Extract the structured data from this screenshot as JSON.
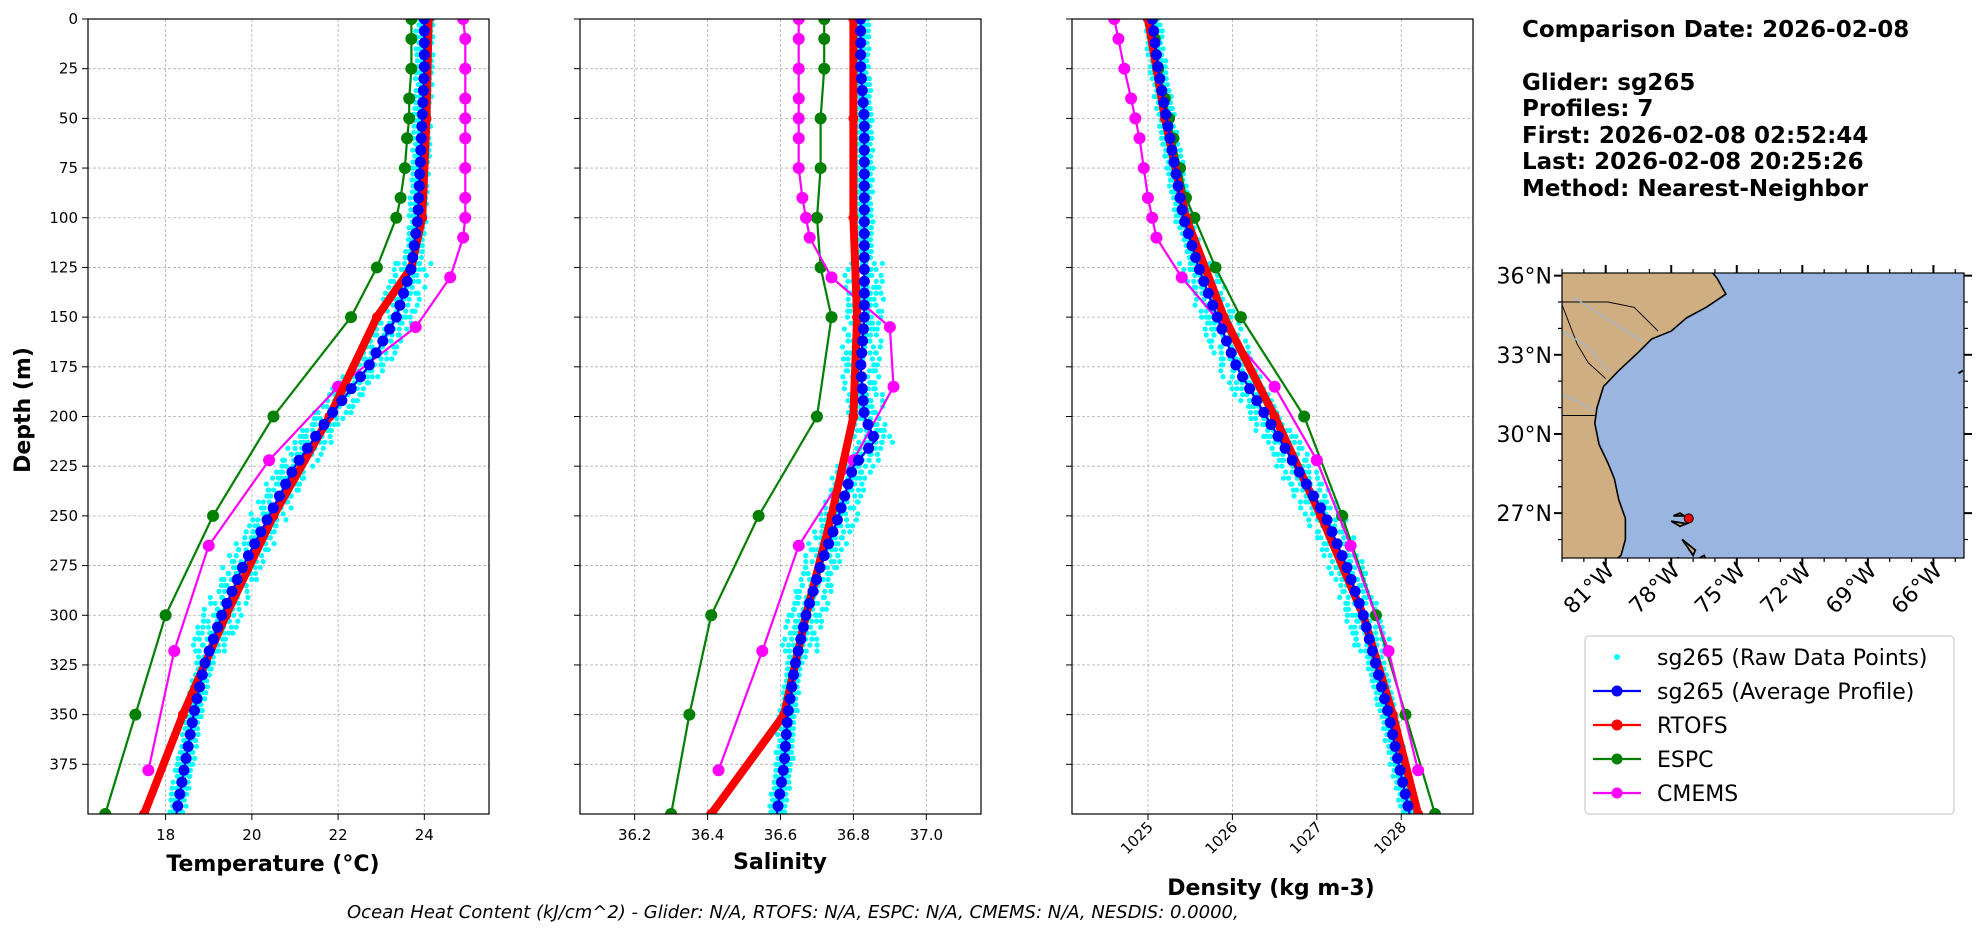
{
  "info": {
    "comparison_date": "Comparison Date: 2026-02-08",
    "lines": [
      "Glider: sg265",
      "Profiles: 7",
      "First: 2026-02-08 02:52:44",
      "Last: 2026-02-08 20:25:26",
      "Method: Nearest-Neighbor"
    ]
  },
  "footer": "Ocean Heat Content (kJ/cm^2) - Glider: N/A,  RTOFS: N/A,  ESPC: N/A,  CMEMS: N/A,  NESDIS: 0.0000,",
  "colors": {
    "raw": "#00ffff",
    "glider": "#0000ff",
    "rtofs": "#ff0000",
    "espc": "#008000",
    "cmems": "#ff00ff",
    "land": "#cfae82",
    "ocean": "#99b5e0",
    "grid": "#b0b0b0"
  },
  "legend": [
    {
      "label": "sg265 (Raw Data Points)",
      "key": "raw"
    },
    {
      "label": "sg265 (Average Profile)",
      "key": "glider"
    },
    {
      "label": "RTOFS",
      "key": "rtofs"
    },
    {
      "label": "ESPC",
      "key": "espc"
    },
    {
      "label": "CMEMS",
      "key": "cmems"
    }
  ],
  "map": {
    "lat_labels": [
      "36°N",
      "33°N",
      "30°N",
      "27°N"
    ],
    "lon_labels": [
      "81°W",
      "78°W",
      "75°W",
      "72°W",
      "69°W",
      "66°W"
    ],
    "lat_range": [
      25.3,
      36.1
    ],
    "lon_range": [
      -83.0,
      -64.6
    ],
    "glider_location": {
      "lat": 26.8,
      "lon": -77.2
    }
  },
  "chart_data": [
    {
      "type": "line",
      "name": "temperature",
      "xlabel": "Temperature (°C)",
      "ylabel": "Depth (m)",
      "xlim": [
        16.2,
        25.5
      ],
      "ylim": [
        0,
        400
      ],
      "y_inverted": true,
      "xticks": [
        18,
        20,
        22,
        24
      ],
      "yticks": [
        0,
        25,
        50,
        75,
        100,
        125,
        150,
        175,
        200,
        225,
        250,
        275,
        300,
        325,
        350,
        375
      ],
      "series": [
        {
          "name": "sg265 (Average Profile)",
          "key": "glider",
          "depth": [
            0,
            25,
            50,
            75,
            100,
            125,
            150,
            175,
            200,
            225,
            250,
            275,
            300,
            325,
            350,
            375,
            400
          ],
          "values": [
            24.0,
            24.0,
            23.95,
            23.9,
            23.85,
            23.7,
            23.35,
            22.7,
            21.8,
            21.0,
            20.4,
            19.8,
            19.3,
            18.9,
            18.65,
            18.45,
            18.25
          ]
        },
        {
          "name": "RTOFS",
          "key": "rtofs",
          "depth": [
            0,
            50,
            100,
            125,
            150,
            200,
            250,
            300,
            350,
            400
          ],
          "values": [
            24.1,
            24.05,
            23.95,
            23.7,
            22.9,
            21.8,
            20.5,
            19.4,
            18.4,
            17.5
          ]
        },
        {
          "name": "ESPC",
          "key": "espc",
          "depth": [
            0,
            10,
            25,
            40,
            50,
            60,
            75,
            90,
            100,
            125,
            150,
            200,
            250,
            300,
            350,
            400
          ],
          "values": [
            23.7,
            23.7,
            23.7,
            23.65,
            23.65,
            23.6,
            23.55,
            23.45,
            23.35,
            22.9,
            22.3,
            20.5,
            19.1,
            18.0,
            17.3,
            16.6
          ]
        },
        {
          "name": "CMEMS",
          "key": "cmems",
          "depth": [
            0,
            10,
            25,
            40,
            50,
            60,
            75,
            90,
            100,
            110,
            130,
            155,
            185,
            222,
            265,
            318,
            378
          ],
          "values": [
            24.9,
            24.95,
            24.95,
            24.95,
            24.95,
            24.95,
            24.95,
            24.95,
            24.95,
            24.9,
            24.6,
            23.8,
            22.0,
            20.4,
            19.0,
            18.2,
            17.6
          ]
        }
      ]
    },
    {
      "type": "line",
      "name": "salinity",
      "xlabel": "Salinity",
      "xlim": [
        36.05,
        37.15
      ],
      "ylim": [
        0,
        400
      ],
      "y_inverted": true,
      "xticks": [
        36.2,
        36.4,
        36.6,
        36.8,
        37.0
      ],
      "series": [
        {
          "name": "sg265 (Average Profile)",
          "key": "glider",
          "depth": [
            0,
            25,
            50,
            75,
            100,
            125,
            150,
            175,
            200,
            212,
            225,
            250,
            275,
            300,
            325,
            350,
            375,
            400
          ],
          "values": [
            36.82,
            36.82,
            36.83,
            36.83,
            36.83,
            36.83,
            36.83,
            36.82,
            36.83,
            36.86,
            36.8,
            36.76,
            36.71,
            36.67,
            36.64,
            36.62,
            36.61,
            36.59
          ]
        },
        {
          "name": "RTOFS",
          "key": "rtofs",
          "depth": [
            0,
            50,
            100,
            150,
            200,
            250,
            300,
            350,
            400
          ],
          "values": [
            36.8,
            36.8,
            36.8,
            36.81,
            36.8,
            36.74,
            36.67,
            36.61,
            36.41
          ]
        },
        {
          "name": "ESPC",
          "key": "espc",
          "depth": [
            0,
            10,
            25,
            50,
            75,
            100,
            125,
            150,
            200,
            250,
            300,
            350,
            400
          ],
          "values": [
            36.72,
            36.72,
            36.72,
            36.71,
            36.71,
            36.7,
            36.71,
            36.74,
            36.7,
            36.54,
            36.41,
            36.35,
            36.3
          ]
        },
        {
          "name": "CMEMS",
          "key": "cmems",
          "depth": [
            0,
            10,
            25,
            40,
            50,
            60,
            75,
            90,
            100,
            110,
            130,
            155,
            185,
            222,
            265,
            318,
            378
          ],
          "values": [
            36.65,
            36.65,
            36.65,
            36.65,
            36.65,
            36.65,
            36.65,
            36.66,
            36.67,
            36.68,
            36.74,
            36.9,
            36.91,
            36.8,
            36.65,
            36.55,
            36.43
          ]
        }
      ]
    },
    {
      "type": "line",
      "name": "density",
      "xlabel": "Density (kg m-3)",
      "xlim": [
        1024.1,
        1028.85
      ],
      "ylim": [
        0,
        400
      ],
      "y_inverted": true,
      "xticks": [
        1025,
        1026,
        1027,
        1028
      ],
      "series": [
        {
          "name": "sg265 (Average Profile)",
          "key": "glider",
          "depth": [
            0,
            25,
            50,
            75,
            100,
            125,
            150,
            175,
            200,
            225,
            250,
            275,
            300,
            325,
            350,
            375,
            400
          ],
          "values": [
            1025.05,
            1025.12,
            1025.22,
            1025.32,
            1025.42,
            1025.6,
            1025.82,
            1026.05,
            1026.4,
            1026.75,
            1027.1,
            1027.35,
            1027.55,
            1027.7,
            1027.85,
            1027.97,
            1028.1
          ]
        },
        {
          "name": "RTOFS",
          "key": "rtofs",
          "depth": [
            0,
            50,
            100,
            150,
            200,
            250,
            300,
            350,
            400
          ],
          "values": [
            1025.0,
            1025.2,
            1025.45,
            1025.9,
            1026.5,
            1027.05,
            1027.55,
            1027.9,
            1028.2
          ]
        },
        {
          "name": "ESPC",
          "key": "espc",
          "depth": [
            0,
            10,
            25,
            40,
            50,
            60,
            75,
            90,
            100,
            125,
            150,
            200,
            250,
            300,
            350,
            400
          ],
          "values": [
            1025.05,
            1025.08,
            1025.12,
            1025.2,
            1025.25,
            1025.3,
            1025.38,
            1025.45,
            1025.55,
            1025.8,
            1026.1,
            1026.85,
            1027.3,
            1027.7,
            1028.05,
            1028.4
          ]
        },
        {
          "name": "CMEMS",
          "key": "cmems",
          "depth": [
            0,
            10,
            25,
            40,
            50,
            60,
            75,
            90,
            100,
            110,
            130,
            155,
            185,
            222,
            265,
            318,
            378
          ],
          "values": [
            1024.6,
            1024.65,
            1024.72,
            1024.8,
            1024.85,
            1024.9,
            1024.95,
            1025.0,
            1025.05,
            1025.1,
            1025.4,
            1025.9,
            1026.5,
            1027.0,
            1027.4,
            1027.85,
            1028.2
          ]
        }
      ]
    }
  ]
}
